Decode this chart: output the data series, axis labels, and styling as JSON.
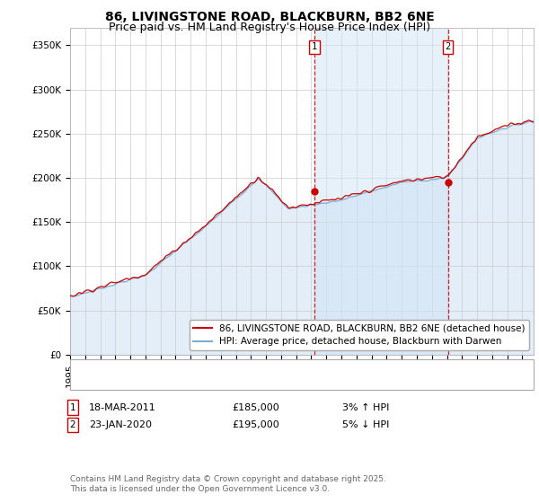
{
  "title": "86, LIVINGSTONE ROAD, BLACKBURN, BB2 6NE",
  "subtitle": "Price paid vs. HM Land Registry's House Price Index (HPI)",
  "ylabel_ticks": [
    "£0",
    "£50K",
    "£100K",
    "£150K",
    "£200K",
    "£250K",
    "£300K",
    "£350K"
  ],
  "ylim": [
    0,
    370000
  ],
  "xlim_start": 1995.0,
  "xlim_end": 2025.75,
  "sale1_date": 2011.21,
  "sale1_price": 185000,
  "sale1_label": "1",
  "sale2_date": 2020.07,
  "sale2_price": 195000,
  "sale2_label": "2",
  "hpi_color": "#a8c8e8",
  "hpi_line_color": "#7aaed4",
  "price_color": "#cc0000",
  "vline_color": "#cc0000",
  "vline_alpha": 0.85,
  "shade_color": "#d0e4f5",
  "shade_alpha": 0.5,
  "background_color": "#ffffff",
  "grid_color": "#cccccc",
  "legend1": "86, LIVINGSTONE ROAD, BLACKBURN, BB2 6NE (detached house)",
  "legend2": "HPI: Average price, detached house, Blackburn with Darwen",
  "footnote": "Contains HM Land Registry data © Crown copyright and database right 2025.\nThis data is licensed under the Open Government Licence v3.0.",
  "title_fontsize": 10,
  "subtitle_fontsize": 9,
  "tick_fontsize": 7.5,
  "legend_fontsize": 7.5,
  "annot_fontsize": 8,
  "footnote_fontsize": 6.5
}
